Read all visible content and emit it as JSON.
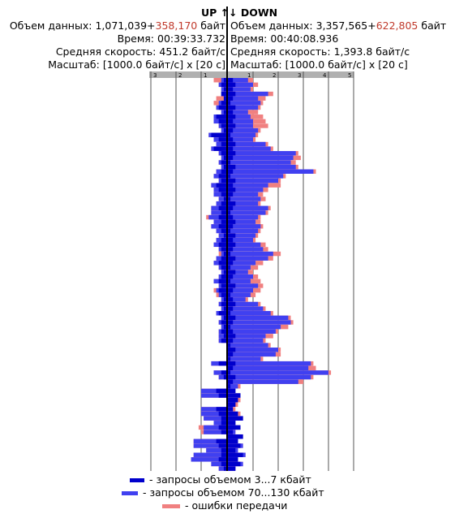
{
  "header": {
    "up_title": "UP",
    "up_arrow": "↑",
    "down_arrow": "↓",
    "down_title": "DOWN",
    "up": {
      "data_label": "Объем данных:",
      "data_value": "1,071,039+",
      "data_error": "358,170",
      "data_unit": "байт",
      "time_label": "Время:",
      "time_value": "00:39:33.732",
      "speed_label": "Средняя скорость:",
      "speed_value": "451.2 байт/с",
      "scale_label": "Масштаб:",
      "scale_value": "[1000.0 байт/с] x [20 с]"
    },
    "down": {
      "data_label": "Объем данных:",
      "data_value": "3,357,565+",
      "data_error": "622,805",
      "data_unit": "байт",
      "time_label": "Время:",
      "time_value": "00:40:08.936",
      "speed_label": "Средняя скорость:",
      "speed_value": "1,393.8 байт/с",
      "scale_label": "Масштаб:",
      "scale_value": "[1000.0 байт/с] x [20 с]"
    }
  },
  "legend": [
    {
      "label": "- запросы объемом 3...7 кбайт",
      "color": "#0000cc"
    },
    {
      "label": "- запросы объемом 70...130 кбайт",
      "color": "#4040f0"
    },
    {
      "label": "- ошибки передачи",
      "color": "#f08080"
    }
  ],
  "chart_data": {
    "type": "bar",
    "orientation": "horizontal-butterfly",
    "up_axis_ticks": [
      "3",
      "2",
      "1"
    ],
    "down_axis_ticks": [
      "1",
      "2",
      "3",
      "4",
      "5"
    ],
    "x_unit": "1000 байт/с",
    "row_duration_s": 20,
    "colors": {
      "small": "#0000cc",
      "large": "#4040f0",
      "error": "#f08080",
      "axis_bar": "#b0b0b0"
    },
    "up": [
      {
        "s": 0.1,
        "l": 0.2,
        "e": 0.5
      },
      {
        "s": 0.2,
        "l": 0.3,
        "e": 0.3
      },
      {
        "s": 0.1,
        "l": 0.2,
        "e": 0.1
      },
      {
        "s": 0.2,
        "l": 0.2,
        "e": 0.2
      },
      {
        "s": 0.1,
        "l": 0.1,
        "e": 0.4
      },
      {
        "s": 0.2,
        "l": 0.3,
        "e": 0.5
      },
      {
        "s": 0.3,
        "l": 0.4,
        "e": 0.1
      },
      {
        "s": 0.1,
        "l": 0.2,
        "e": 0.1
      },
      {
        "s": 0.4,
        "l": 0.5,
        "e": 0.0
      },
      {
        "s": 0.3,
        "l": 0.5,
        "e": 0.0
      },
      {
        "s": 0.2,
        "l": 0.3,
        "e": 0.0
      },
      {
        "s": 0.1,
        "l": 0.2,
        "e": 0.1
      },
      {
        "s": 0.6,
        "l": 0.7,
        "e": 0.0
      },
      {
        "s": 0.3,
        "l": 0.5,
        "e": 0.0
      },
      {
        "s": 0.2,
        "l": 0.4,
        "e": 0.1
      },
      {
        "s": 0.5,
        "l": 0.6,
        "e": 0.0
      },
      {
        "s": 0.2,
        "l": 0.3,
        "e": 0.1
      },
      {
        "s": 0.1,
        "l": 0.2,
        "e": 0.0
      },
      {
        "s": 0.2,
        "l": 0.3,
        "e": 0.0
      },
      {
        "s": 0.1,
        "l": 0.2,
        "e": 0.0
      },
      {
        "s": 0.2,
        "l": 0.4,
        "e": 0.1
      },
      {
        "s": 0.3,
        "l": 0.5,
        "e": 0.0
      },
      {
        "s": 0.2,
        "l": 0.3,
        "e": 0.1
      },
      {
        "s": 0.4,
        "l": 0.6,
        "e": 0.1
      },
      {
        "s": 0.3,
        "l": 0.5,
        "e": 0.1
      },
      {
        "s": 0.2,
        "l": 0.5,
        "e": 0.3
      },
      {
        "s": 0.1,
        "l": 0.3,
        "e": 0.3
      },
      {
        "s": 0.2,
        "l": 0.4,
        "e": 0.3
      },
      {
        "s": 0.3,
        "l": 0.6,
        "e": 0.4
      },
      {
        "s": 0.2,
        "l": 0.6,
        "e": 0.6
      },
      {
        "s": 0.3,
        "l": 0.7,
        "e": 0.8
      },
      {
        "s": 0.2,
        "l": 0.5,
        "e": 0.5
      },
      {
        "s": 0.3,
        "l": 0.6,
        "e": 0.4
      },
      {
        "s": 0.2,
        "l": 0.4,
        "e": 0.3
      },
      {
        "s": 0.1,
        "l": 0.3,
        "e": 0.2
      },
      {
        "s": 0.2,
        "l": 0.4,
        "e": 0.1
      },
      {
        "s": 0.3,
        "l": 0.5,
        "e": 0.2
      },
      {
        "s": 0.2,
        "l": 0.3,
        "e": 0.3
      },
      {
        "s": 0.1,
        "l": 0.2,
        "e": 0.3
      },
      {
        "s": 0.2,
        "l": 0.4,
        "e": 0.3
      },
      {
        "s": 0.3,
        "l": 0.5,
        "e": 0.2
      },
      {
        "s": 0.2,
        "l": 0.3,
        "e": 0.2
      },
      {
        "s": 0.1,
        "l": 0.2,
        "e": 0.1
      },
      {
        "s": 0.2,
        "l": 0.3,
        "e": 0.0
      },
      {
        "s": 0.3,
        "l": 0.5,
        "e": 0.0
      },
      {
        "s": 0.2,
        "l": 0.3,
        "e": 0.2
      },
      {
        "s": 0.3,
        "l": 0.4,
        "e": 0.5
      },
      {
        "s": 0.2,
        "l": 0.3,
        "e": 0.4
      },
      {
        "s": 0.1,
        "l": 0.2,
        "e": 0.2
      },
      {
        "s": 0.2,
        "l": 0.3,
        "e": 0.1
      },
      {
        "s": 0.1,
        "l": 0.2,
        "e": 0.1
      },
      {
        "s": 0.3,
        "l": 0.4,
        "e": 0.2
      },
      {
        "s": 0.1,
        "l": 0.2,
        "e": 0.1
      },
      {
        "s": 0.2,
        "l": 0.3,
        "e": 0.2
      },
      {
        "s": 0.1,
        "l": 0.2,
        "e": 0.1
      },
      {
        "s": 0.2,
        "l": 0.3,
        "e": 0.0
      },
      {
        "s": 0.1,
        "l": 0.3,
        "e": 0.0
      },
      {
        "s": 0.2,
        "l": 0.3,
        "e": 0.0
      },
      {
        "s": 0.0,
        "l": 0.0,
        "e": 0.0
      },
      {
        "s": 0.0,
        "l": 0.0,
        "e": 0.0
      },
      {
        "s": 0.0,
        "l": 0.0,
        "e": 0.0
      },
      {
        "s": 0.0,
        "l": 0.0,
        "e": 0.0
      },
      {
        "s": 0.3,
        "l": 0.6,
        "e": 0.0
      },
      {
        "s": 0.0,
        "l": 0.0,
        "e": 0.0
      },
      {
        "s": 0.2,
        "l": 0.5,
        "e": 0.0
      },
      {
        "s": 0.1,
        "l": 0.3,
        "e": 0.0
      },
      {
        "s": 0.0,
        "l": 0.0,
        "e": 0.0
      },
      {
        "s": 0.0,
        "l": 0.0,
        "e": 0.0
      },
      {
        "s": 0.4,
        "l": 1.0,
        "e": 0.0
      },
      {
        "s": 0.3,
        "l": 1.0,
        "e": 0.0
      },
      {
        "s": 0.0,
        "l": 0.0,
        "e": 0.0
      },
      {
        "s": 0.0,
        "l": 0.0,
        "e": 0.0
      },
      {
        "s": 0.4,
        "l": 1.0,
        "e": 0.0
      },
      {
        "s": 0.3,
        "l": 1.0,
        "e": 0.0
      },
      {
        "s": 0.2,
        "l": 0.9,
        "e": 0.0
      },
      {
        "s": 0.2,
        "l": 0.5,
        "e": 0.0
      },
      {
        "s": 0.3,
        "l": 0.9,
        "e": 1.1
      },
      {
        "s": 0.2,
        "l": 0.9,
        "e": 1.0
      },
      {
        "s": 0.0,
        "l": 0.0,
        "e": 0.0
      },
      {
        "s": 0.4,
        "l": 1.3,
        "e": 0.0
      },
      {
        "s": 0.3,
        "l": 1.3,
        "e": 0.0
      },
      {
        "s": 0.2,
        "l": 0.8,
        "e": 0.0
      },
      {
        "s": 0.2,
        "l": 1.3,
        "e": 0.0
      },
      {
        "s": 0.3,
        "l": 1.4,
        "e": 0.0
      },
      {
        "s": 0.2,
        "l": 0.6,
        "e": 0.0
      },
      {
        "s": 0.1,
        "l": 0.3,
        "e": 0.0
      }
    ],
    "down": [
      {
        "s": 0.2,
        "l": 0.8,
        "e": 1.0
      },
      {
        "s": 0.3,
        "l": 1.0,
        "e": 1.2
      },
      {
        "s": 0.2,
        "l": 0.9,
        "e": 1.0
      },
      {
        "s": 0.3,
        "l": 1.6,
        "e": 1.8
      },
      {
        "s": 0.2,
        "l": 1.2,
        "e": 1.5
      },
      {
        "s": 0.1,
        "l": 1.3,
        "e": 1.4
      },
      {
        "s": 0.3,
        "l": 1.2,
        "e": 1.3
      },
      {
        "s": 0.2,
        "l": 0.8,
        "e": 1.2
      },
      {
        "s": 0.3,
        "l": 0.9,
        "e": 1.4
      },
      {
        "s": 0.2,
        "l": 1.0,
        "e": 1.5
      },
      {
        "s": 0.3,
        "l": 1.0,
        "e": 1.6
      },
      {
        "s": 0.2,
        "l": 1.2,
        "e": 1.3
      },
      {
        "s": 0.1,
        "l": 1.1,
        "e": 1.2
      },
      {
        "s": 0.2,
        "l": 1.0,
        "e": 1.1
      },
      {
        "s": 0.3,
        "l": 1.5,
        "e": 1.6
      },
      {
        "s": 0.2,
        "l": 1.7,
        "e": 1.8
      },
      {
        "s": 0.3,
        "l": 2.7,
        "e": 2.8
      },
      {
        "s": 0.2,
        "l": 2.6,
        "e": 2.9
      },
      {
        "s": 0.1,
        "l": 2.5,
        "e": 2.7
      },
      {
        "s": 0.3,
        "l": 2.7,
        "e": 2.8
      },
      {
        "s": 0.2,
        "l": 3.4,
        "e": 3.5
      },
      {
        "s": 0.1,
        "l": 2.2,
        "e": 2.3
      },
      {
        "s": 0.3,
        "l": 2.0,
        "e": 2.1
      },
      {
        "s": 0.2,
        "l": 1.6,
        "e": 2.1
      },
      {
        "s": 0.3,
        "l": 1.4,
        "e": 1.6
      },
      {
        "s": 0.2,
        "l": 1.2,
        "e": 1.4
      },
      {
        "s": 0.1,
        "l": 1.3,
        "e": 1.5
      },
      {
        "s": 0.3,
        "l": 1.2,
        "e": 1.3
      },
      {
        "s": 0.2,
        "l": 1.6,
        "e": 1.7
      },
      {
        "s": 0.1,
        "l": 1.5,
        "e": 1.6
      },
      {
        "s": 0.2,
        "l": 1.2,
        "e": 1.3
      },
      {
        "s": 0.3,
        "l": 1.1,
        "e": 1.3
      },
      {
        "s": 0.2,
        "l": 1.3,
        "e": 1.4
      },
      {
        "s": 0.1,
        "l": 1.2,
        "e": 1.3
      },
      {
        "s": 0.3,
        "l": 1.1,
        "e": 1.2
      },
      {
        "s": 0.2,
        "l": 1.0,
        "e": 1.1
      },
      {
        "s": 0.3,
        "l": 1.3,
        "e": 1.5
      },
      {
        "s": 0.2,
        "l": 1.4,
        "e": 1.6
      },
      {
        "s": 0.1,
        "l": 1.8,
        "e": 2.1
      },
      {
        "s": 0.3,
        "l": 1.6,
        "e": 1.8
      },
      {
        "s": 0.2,
        "l": 1.1,
        "e": 1.4
      },
      {
        "s": 0.1,
        "l": 0.9,
        "e": 1.2
      },
      {
        "s": 0.3,
        "l": 0.8,
        "e": 1.0
      },
      {
        "s": 0.2,
        "l": 1.0,
        "e": 1.2
      },
      {
        "s": 0.1,
        "l": 0.9,
        "e": 1.3
      },
      {
        "s": 0.3,
        "l": 1.2,
        "e": 1.4
      },
      {
        "s": 0.2,
        "l": 1.0,
        "e": 1.3
      },
      {
        "s": 0.1,
        "l": 0.9,
        "e": 1.1
      },
      {
        "s": 0.2,
        "l": 0.7,
        "e": 0.8
      },
      {
        "s": 0.3,
        "l": 1.2,
        "e": 1.3
      },
      {
        "s": 0.2,
        "l": 1.4,
        "e": 1.5
      },
      {
        "s": 0.1,
        "l": 1.7,
        "e": 1.8
      },
      {
        "s": 0.3,
        "l": 2.4,
        "e": 2.5
      },
      {
        "s": 0.2,
        "l": 2.5,
        "e": 2.6
      },
      {
        "s": 0.1,
        "l": 2.1,
        "e": 2.4
      },
      {
        "s": 0.2,
        "l": 1.9,
        "e": 2.0
      },
      {
        "s": 0.3,
        "l": 1.5,
        "e": 1.8
      },
      {
        "s": 0.2,
        "l": 1.4,
        "e": 1.5
      },
      {
        "s": 0.1,
        "l": 1.6,
        "e": 1.7
      },
      {
        "s": 0.3,
        "l": 2.0,
        "e": 2.1
      },
      {
        "s": 0.2,
        "l": 1.9,
        "e": 2.1
      },
      {
        "s": 0.1,
        "l": 1.3,
        "e": 1.4
      },
      {
        "s": 0.3,
        "l": 3.3,
        "e": 3.4
      },
      {
        "s": 0.2,
        "l": 3.2,
        "e": 3.5
      },
      {
        "s": 0.1,
        "l": 4.0,
        "e": 4.1
      },
      {
        "s": 0.3,
        "l": 3.3,
        "e": 3.4
      },
      {
        "s": 0.2,
        "l": 2.8,
        "e": 3.0
      },
      {
        "s": 0.1,
        "l": 0.4,
        "e": 0.5
      },
      {
        "s": 0.3,
        "l": 0.3,
        "e": 0.3
      },
      {
        "s": 0.5,
        "l": 0.5,
        "e": 0.5
      },
      {
        "s": 0.4,
        "l": 0.4,
        "e": 0.5
      },
      {
        "s": 0.3,
        "l": 0.3,
        "e": 0.4
      },
      {
        "s": 0.2,
        "l": 0.2,
        "e": 0.3
      },
      {
        "s": 0.4,
        "l": 0.4,
        "e": 0.5
      },
      {
        "s": 0.6,
        "l": 0.6,
        "e": 0.6
      },
      {
        "s": 0.3,
        "l": 0.3,
        "e": 0.3
      },
      {
        "s": 0.5,
        "l": 0.5,
        "e": 0.5
      },
      {
        "s": 0.2,
        "l": 0.3,
        "e": 0.3
      },
      {
        "s": 0.6,
        "l": 0.6,
        "e": 0.6
      },
      {
        "s": 0.4,
        "l": 0.4,
        "e": 0.4
      },
      {
        "s": 0.5,
        "l": 0.6,
        "e": 0.6
      },
      {
        "s": 0.3,
        "l": 0.4,
        "e": 0.4
      },
      {
        "s": 0.6,
        "l": 0.7,
        "e": 0.7
      },
      {
        "s": 0.4,
        "l": 0.4,
        "e": 0.4
      },
      {
        "s": 0.5,
        "l": 0.6,
        "e": 0.6
      },
      {
        "s": 0.3,
        "l": 0.3,
        "e": 0.3
      }
    ]
  }
}
